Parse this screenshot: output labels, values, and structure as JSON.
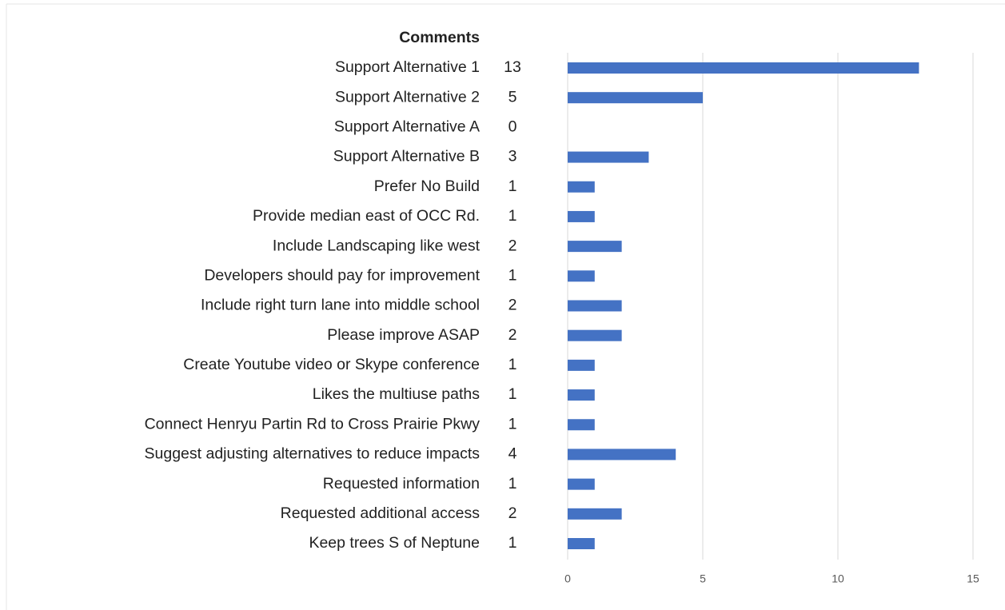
{
  "chart_data": {
    "type": "bar",
    "orientation": "horizontal",
    "column_header": "Comments",
    "categories": [
      "Support Alternative 1",
      "Support Alternative 2",
      "Support Alternative A",
      "Support Alternative B",
      "Prefer No Build",
      "Provide median east of OCC Rd.",
      "Include Landscaping like west",
      "Developers should pay for improvement",
      "Include right turn lane into middle school",
      "Please improve ASAP",
      "Create Youtube video or Skype conference",
      "Likes the multiuse paths",
      "Connect Henryu Partin Rd to Cross Prairie Pkwy",
      "Suggest adjusting alternatives to reduce impacts",
      "Requested information",
      "Requested additional access",
      "Keep trees S of Neptune"
    ],
    "values": [
      13,
      5,
      0,
      3,
      1,
      1,
      2,
      1,
      2,
      2,
      1,
      1,
      1,
      4,
      1,
      2,
      1
    ],
    "color": "#4472c4",
    "xlim": [
      0,
      15
    ],
    "xticks": [
      0,
      5,
      10,
      15
    ],
    "grid": true
  }
}
